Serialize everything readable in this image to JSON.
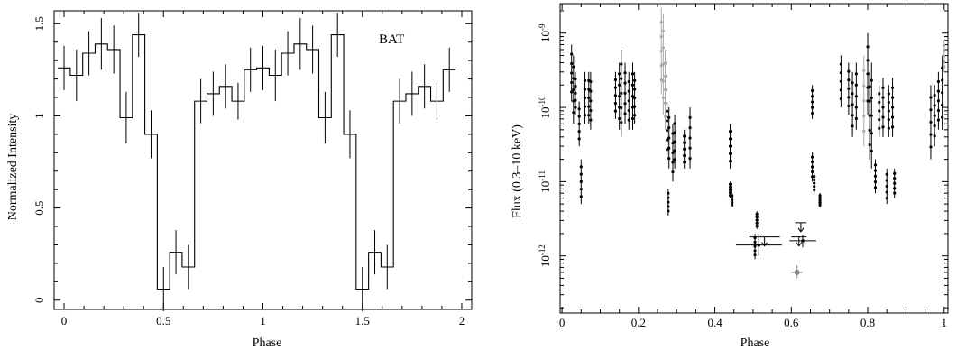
{
  "chart_data": [
    {
      "type": "line",
      "style": "step-histogram-with-error-bars",
      "annotation": "BAT",
      "xlabel": "Phase",
      "ylabel": "Normalized Intensity",
      "xlim": [
        -0.05,
        2.05
      ],
      "ylim": [
        -0.05,
        1.57
      ],
      "xticks": [
        "0",
        "0.5",
        "1",
        "1.5",
        "2"
      ],
      "yticks": [
        "0",
        "0.5",
        "1",
        "1.5"
      ],
      "bin_width": 0.0625,
      "x": [
        0.0,
        0.0625,
        0.125,
        0.1875,
        0.25,
        0.3125,
        0.375,
        0.4375,
        0.5,
        0.5625,
        0.625,
        0.6875,
        0.75,
        0.8125,
        0.875,
        0.9375,
        1.0,
        1.0625,
        1.125,
        1.1875,
        1.25,
        1.3125,
        1.375,
        1.4375,
        1.5,
        1.5625,
        1.625,
        1.6875,
        1.75,
        1.8125,
        1.875,
        1.9375
      ],
      "y": [
        1.26,
        1.22,
        1.34,
        1.39,
        1.36,
        0.99,
        1.44,
        0.9,
        0.06,
        0.26,
        0.18,
        1.08,
        1.12,
        1.16,
        1.08,
        1.25,
        1.26,
        1.22,
        1.34,
        1.39,
        1.36,
        0.99,
        1.44,
        0.9,
        0.06,
        0.26,
        0.18,
        1.08,
        1.12,
        1.16,
        1.08,
        1.25
      ],
      "yerr": [
        0.12,
        0.14,
        0.12,
        0.14,
        0.13,
        0.14,
        0.12,
        0.13,
        0.12,
        0.12,
        0.12,
        0.12,
        0.12,
        0.12,
        0.1,
        0.12,
        0.12,
        0.14,
        0.12,
        0.14,
        0.13,
        0.14,
        0.12,
        0.13,
        0.12,
        0.12,
        0.12,
        0.12,
        0.12,
        0.12,
        0.1,
        0.12
      ],
      "grid": false
    },
    {
      "type": "scatter",
      "style": "points-with-error-bars",
      "xlabel": "Phase",
      "ylabel": "Flux (0.3–10 keV)",
      "xscale": "linear",
      "yscale": "log",
      "xlim": [
        -0.005,
        1.01
      ],
      "ylim": [
        1.7e-13,
        2.5e-09
      ],
      "xticks": [
        "0",
        "0.2",
        "0.4",
        "0.6",
        "0.8",
        "1"
      ],
      "yticks": [
        "10^-12",
        "10^-11",
        "10^-10",
        "10^-9"
      ],
      "grid": false,
      "clusters": [
        {
          "x": 0.025,
          "lo": 1.2e-10,
          "hi": 7e-10,
          "color": "#000000"
        },
        {
          "x": 0.03,
          "lo": 6e-11,
          "hi": 5e-10,
          "color": "#000000"
        },
        {
          "x": 0.035,
          "lo": 8e-11,
          "hi": 3e-10,
          "color": "#000000"
        },
        {
          "x": 0.045,
          "lo": 3e-11,
          "hi": 1.2e-10,
          "color": "#000000"
        },
        {
          "x": 0.05,
          "lo": 5e-12,
          "hi": 2e-11,
          "color": "#000000"
        },
        {
          "x": 0.06,
          "lo": 6e-11,
          "hi": 3e-10,
          "color": "#000000"
        },
        {
          "x": 0.07,
          "lo": 6e-11,
          "hi": 3e-10,
          "color": "#000000"
        },
        {
          "x": 0.075,
          "lo": 5e-11,
          "hi": 3e-10,
          "color": "#000000"
        },
        {
          "x": 0.14,
          "lo": 7e-11,
          "hi": 3e-10,
          "color": "#000000"
        },
        {
          "x": 0.15,
          "lo": 5e-11,
          "hi": 4e-10,
          "color": "#000000"
        },
        {
          "x": 0.155,
          "lo": 4e-11,
          "hi": 6e-10,
          "color": "#000000"
        },
        {
          "x": 0.165,
          "lo": 6e-11,
          "hi": 4e-10,
          "color": "#000000"
        },
        {
          "x": 0.175,
          "lo": 5e-11,
          "hi": 3e-10,
          "color": "#000000"
        },
        {
          "x": 0.185,
          "lo": 5e-11,
          "hi": 4e-10,
          "color": "#000000"
        },
        {
          "x": 0.19,
          "lo": 6e-11,
          "hi": 3e-10,
          "color": "#000000"
        },
        {
          "x": 0.26,
          "lo": 1.5e-10,
          "hi": 2.2e-09,
          "color": "#aaaaaa"
        },
        {
          "x": 0.265,
          "lo": 8e-11,
          "hi": 1.8e-09,
          "color": "#aaaaaa"
        },
        {
          "x": 0.27,
          "lo": 5e-11,
          "hi": 6e-10,
          "color": "#aaaaaa"
        },
        {
          "x": 0.275,
          "lo": 2e-11,
          "hi": 1.2e-10,
          "color": "#000000"
        },
        {
          "x": 0.278,
          "lo": 3.5e-12,
          "hi": 8e-12,
          "color": "#000000"
        },
        {
          "x": 0.28,
          "lo": 1.5e-11,
          "hi": 1e-10,
          "color": "#000000"
        },
        {
          "x": 0.29,
          "lo": 1e-11,
          "hi": 6e-11,
          "color": "#000000"
        },
        {
          "x": 0.295,
          "lo": 1.5e-11,
          "hi": 8e-11,
          "color": "#000000"
        },
        {
          "x": 0.32,
          "lo": 1.5e-11,
          "hi": 5e-11,
          "color": "#000000"
        },
        {
          "x": 0.335,
          "lo": 1.5e-11,
          "hi": 1e-10,
          "color": "#000000"
        },
        {
          "x": 0.44,
          "lo": 1.5e-11,
          "hi": 6e-11,
          "color": "#000000"
        },
        {
          "x": 0.44,
          "lo": 6e-12,
          "hi": 1e-11,
          "color": "#000000"
        },
        {
          "x": 0.445,
          "lo": 4.5e-12,
          "hi": 7e-12,
          "color": "#000000"
        },
        {
          "x": 0.505,
          "lo": 9e-13,
          "hi": 2e-12,
          "color": "#000000"
        },
        {
          "x": 0.51,
          "lo": 2.3e-12,
          "hi": 4e-12,
          "color": "#000000"
        },
        {
          "x": 0.655,
          "lo": 7e-11,
          "hi": 2e-10,
          "color": "#000000"
        },
        {
          "x": 0.655,
          "lo": 1e-11,
          "hi": 2.5e-11,
          "color": "#000000"
        },
        {
          "x": 0.66,
          "lo": 7e-12,
          "hi": 1.3e-11,
          "color": "#000000"
        },
        {
          "x": 0.675,
          "lo": 4.5e-12,
          "hi": 7e-12,
          "color": "#000000"
        },
        {
          "x": 0.73,
          "lo": 1e-10,
          "hi": 5e-10,
          "color": "#000000"
        },
        {
          "x": 0.75,
          "lo": 8e-11,
          "hi": 4e-10,
          "color": "#000000"
        },
        {
          "x": 0.76,
          "lo": 4e-11,
          "hi": 3e-10,
          "color": "#000000"
        },
        {
          "x": 0.77,
          "lo": 5e-11,
          "hi": 4e-10,
          "color": "#000000"
        },
        {
          "x": 0.79,
          "lo": 3e-11,
          "hi": 5e-10,
          "color": "#aaaaaa"
        },
        {
          "x": 0.8,
          "lo": 8e-11,
          "hi": 1e-09,
          "color": "#000000"
        },
        {
          "x": 0.805,
          "lo": 2e-11,
          "hi": 3e-10,
          "color": "#000000"
        },
        {
          "x": 0.81,
          "lo": 1.5e-11,
          "hi": 4e-10,
          "color": "#000000"
        },
        {
          "x": 0.82,
          "lo": 7e-12,
          "hi": 2e-11,
          "color": "#000000"
        },
        {
          "x": 0.83,
          "lo": 4e-11,
          "hi": 2e-10,
          "color": "#000000"
        },
        {
          "x": 0.84,
          "lo": 4e-11,
          "hi": 2.5e-10,
          "color": "#000000"
        },
        {
          "x": 0.85,
          "lo": 5e-12,
          "hi": 1.5e-11,
          "color": "#000000"
        },
        {
          "x": 0.855,
          "lo": 4e-11,
          "hi": 2e-10,
          "color": "#000000"
        },
        {
          "x": 0.865,
          "lo": 4e-11,
          "hi": 2.5e-10,
          "color": "#000000"
        },
        {
          "x": 0.87,
          "lo": 6e-12,
          "hi": 1.5e-11,
          "color": "#000000"
        },
        {
          "x": 0.965,
          "lo": 2e-11,
          "hi": 2e-10,
          "color": "#000000"
        },
        {
          "x": 0.975,
          "lo": 3e-11,
          "hi": 2e-10,
          "color": "#000000"
        },
        {
          "x": 0.985,
          "lo": 5e-11,
          "hi": 3e-10,
          "color": "#000000"
        },
        {
          "x": 0.995,
          "lo": 5e-11,
          "hi": 5e-10,
          "color": "#000000"
        },
        {
          "x": 1.0,
          "lo": 3e-10,
          "hi": 8e-10,
          "color": "#aaaaaa"
        }
      ],
      "hbars": [
        {
          "x": 0.515,
          "y": 1.4e-12,
          "xerr": 0.06,
          "yerr": [
            1e-12,
            2e-12
          ],
          "upper_limit": false
        },
        {
          "x": 0.53,
          "y": 1.8e-12,
          "xerr": 0.04,
          "yerr": null,
          "upper_limit": true
        },
        {
          "x": 0.62,
          "y": 1.8e-12,
          "xerr": 0.02,
          "yerr": null,
          "upper_limit": true
        },
        {
          "x": 0.625,
          "y": 2.8e-12,
          "xerr": 0.015,
          "yerr": null,
          "upper_limit": true
        },
        {
          "x": 0.63,
          "y": 1.6e-12,
          "xerr": 0.035,
          "yerr": [
            1.3e-12,
            1.9e-12
          ],
          "upper_limit": false
        },
        {
          "x": 0.615,
          "y": 6e-13,
          "xerr": 0.015,
          "yerr": [
            5e-13,
            7.5e-13
          ],
          "upper_limit": false,
          "color": "#888888"
        }
      ]
    }
  ],
  "left_panel": {
    "annotation": "BAT",
    "xlabel": "Phase",
    "ylabel": "Normalized Intensity",
    "xtick_labels": [
      "0",
      "0.5",
      "1",
      "1.5",
      "2"
    ],
    "ytick_labels": [
      "0",
      "0.5",
      "1",
      "1.5"
    ]
  },
  "right_panel": {
    "xlabel": "Phase",
    "ylabel": "Flux (0.3–10 keV)",
    "xtick_labels": [
      "0",
      "0.2",
      "0.4",
      "0.6",
      "0.8",
      "1"
    ]
  }
}
